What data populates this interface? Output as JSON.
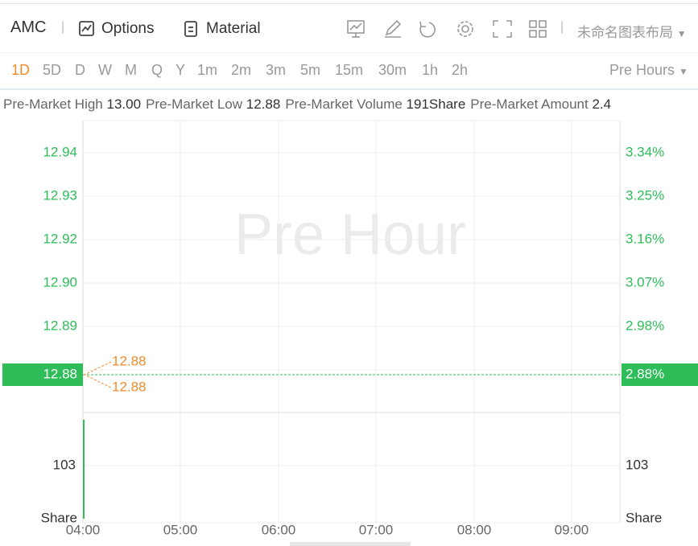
{
  "toolbar": {
    "symbol": "AMC",
    "buttons": [
      "Options",
      "Material"
    ],
    "layout_name": "未命名图表布局"
  },
  "periods": {
    "items": [
      "1D",
      "5D",
      "D",
      "W",
      "M",
      "Q",
      "Y",
      "1m",
      "2m",
      "3m",
      "5m",
      "15m",
      "30m",
      "1h",
      "2h"
    ],
    "active": 0,
    "session": "Pre Hours"
  },
  "summary": [
    {
      "label": "Pre-Market High",
      "value": "13.00"
    },
    {
      "label": "Pre-Market Low",
      "value": "12.88"
    },
    {
      "label": "Pre-Market Volume",
      "value": "191Share"
    },
    {
      "label": "Pre-Market Amount",
      "value": "2.4"
    }
  ],
  "chart": {
    "watermark": "Pre Hour",
    "price_ticks": [
      "12.94",
      "12.93",
      "12.92",
      "12.90",
      "12.89"
    ],
    "percent_ticks": [
      "3.34%",
      "3.25%",
      "3.16%",
      "3.07%",
      "2.98%"
    ],
    "current_price": "12.88",
    "current_percent": "2.88%",
    "markers": [
      "12.88",
      "12.88"
    ],
    "volume_tick": "103",
    "volume_unit": "Share",
    "time_ticks": [
      "04:00",
      "05:00",
      "06:00",
      "07:00",
      "08:00",
      "09:00"
    ]
  }
}
